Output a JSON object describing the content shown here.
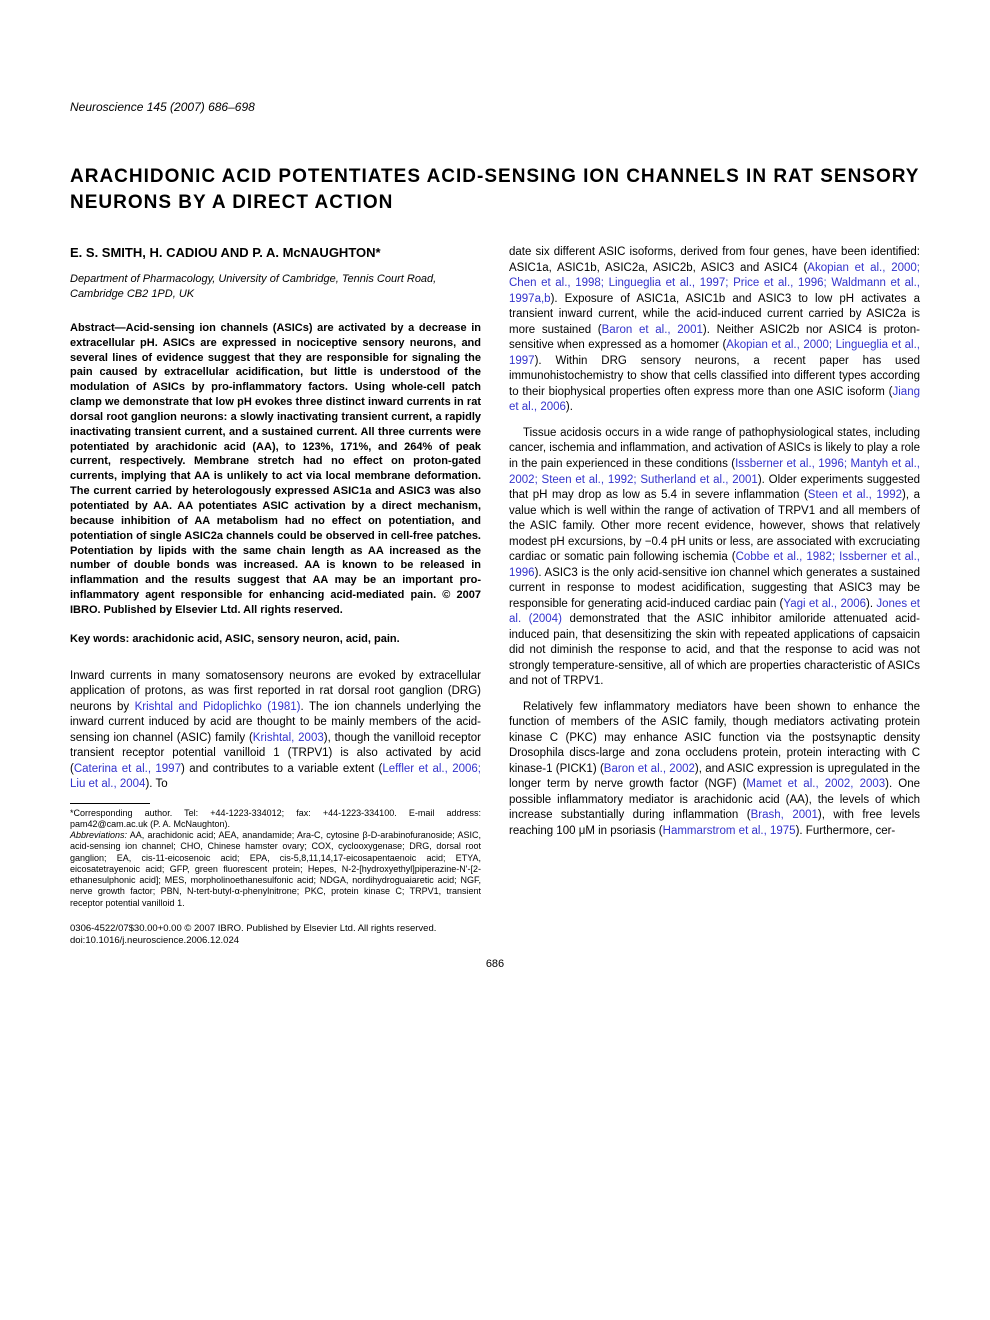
{
  "journal": "Neuroscience 145 (2007) 686–698",
  "title": "ARACHIDONIC ACID POTENTIATES ACID-SENSING ION CHANNELS IN RAT SENSORY NEURONS BY A DIRECT ACTION",
  "authors": "E. S. SMITH, H. CADIOU AND P. A. McNAUGHTON*",
  "affiliation": "Department of Pharmacology, University of Cambridge, Tennis Court Road, Cambridge CB2 1PD, UK",
  "abstract": "Abstract—Acid-sensing ion channels (ASICs) are activated by a decrease in extracellular pH. ASICs are expressed in nociceptive sensory neurons, and several lines of evidence suggest that they are responsible for signaling the pain caused by extracellular acidification, but little is understood of the modulation of ASICs by pro-inflammatory factors. Using whole-cell patch clamp we demonstrate that low pH evokes three distinct inward currents in rat dorsal root ganglion neurons: a slowly inactivating transient current, a rapidly inactivating transient current, and a sustained current. All three currents were potentiated by arachidonic acid (AA), to 123%, 171%, and 264% of peak current, respectively. Membrane stretch had no effect on proton-gated currents, implying that AA is unlikely to act via local membrane deformation. The current carried by heterologously expressed ASIC1a and ASIC3 was also potentiated by AA. AA potentiates ASIC activation by a direct mechanism, because inhibition of AA metabolism had no effect on potentiation, and potentiation of single ASIC2a channels could be observed in cell-free patches. Potentiation by lipids with the same chain length as AA increased as the number of double bonds was increased. AA is known to be released in inflammation and the results suggest that AA may be an important pro-inflammatory agent responsible for enhancing acid-mediated pain. © 2007 IBRO. Published by Elsevier Ltd. All rights reserved.",
  "keywords": "Key words: arachidonic acid, ASIC, sensory neuron, acid, pain.",
  "left_body_1a": "Inward currents in many somatosensory neurons are evoked by extracellular application of protons, as was first reported in rat dorsal root ganglion (DRG) neurons by ",
  "left_ref_1": "Krishtal and Pidoplichko (1981)",
  "left_body_1b": ". The ion channels underlying the inward current induced by acid are thought to be mainly members of the acid-sensing ion channel (ASIC) family (",
  "left_ref_2": "Krishtal, 2003",
  "left_body_1c": "), though the vanilloid receptor transient receptor potential vanilloid 1 (TRPV1) is also activated by acid (",
  "left_ref_3": "Caterina et al., 1997",
  "left_body_1d": ") and contributes to a variable extent (",
  "left_ref_4": "Leffler et al., 2006; Liu et al., 2004",
  "left_body_1e": "). To",
  "footnote_corr": "*Corresponding author. Tel: +44-1223-334012; fax: +44-1223-334100. E-mail address: pam42@cam.ac.uk (P. A. McNaughton).",
  "footnote_abbrev_label": "Abbreviations:",
  "footnote_abbrev": " AA, arachidonic acid; AEA, anandamide; Ara-C, cytosine β-D-arabinofuranoside; ASIC, acid-sensing ion channel; CHO, Chinese hamster ovary; COX, cyclooxygenase; DRG, dorsal root ganglion; EA, cis-11-eicosenoic acid; EPA, cis-5,8,11,14,17-eicosapentaenoic acid; ETYA, eicosatetrayenoic acid; GFP, green fluorescent protein; Hepes, N-2-[hydroxyethyl]piperazine-N'-[2-ethanesulphonic acid]; MES, morpholinoethanesulfonic acid; NDGA, nordihydroguaiaretic acid; NGF, nerve growth factor; PBN, N-tert-butyl-α-phenylnitrone; PKC, protein kinase C; TRPV1, transient receptor potential vanilloid 1.",
  "right_body_1a": "date six different ASIC isoforms, derived from four genes, have been identified: ASIC1a, ASIC1b, ASIC2a, ASIC2b, ASIC3 and ASIC4 (",
  "right_ref_1": "Akopian et al., 2000; Chen et al., 1998; Lingueglia et al., 1997; Price et al., 1996; Waldmann et al., 1997a,b",
  "right_body_1b": "). Exposure of ASIC1a, ASIC1b and ASIC3 to low pH activates a transient inward current, while the acid-induced current carried by ASIC2a is more sustained (",
  "right_ref_2": "Baron et al., 2001",
  "right_body_1c": "). Neither ASIC2b nor ASIC4 is proton-sensitive when expressed as a homomer (",
  "right_ref_3": "Akopian et al., 2000; Lingueglia et al., 1997",
  "right_body_1d": "). Within DRG sensory neurons, a recent paper has used immunohistochemistry to show that cells classified into different types according to their biophysical properties often express more than one ASIC isoform (",
  "right_ref_4": "Jiang et al., 2006",
  "right_body_1e": ").",
  "right_body_2a": "Tissue acidosis occurs in a wide range of pathophysiological states, including cancer, ischemia and inflammation, and activation of ASICs is likely to play a role in the pain experienced in these conditions (",
  "right_ref_5": "Issberner et al., 1996; Mantyh et al., 2002; Steen et al., 1992; Sutherland et al., 2001",
  "right_body_2b": "). Older experiments suggested that pH may drop as low as 5.4 in severe inflammation (",
  "right_ref_6": "Steen et al., 1992",
  "right_body_2c": "), a value which is well within the range of activation of TRPV1 and all members of the ASIC family. Other more recent evidence, however, shows that relatively modest pH excursions, by −0.4 pH units or less, are associated with excruciating cardiac or somatic pain following ischemia (",
  "right_ref_7": "Cobbe et al., 1982; Issberner et al., 1996",
  "right_body_2d": "). ASIC3 is the only acid-sensitive ion channel which generates a sustained current in response to modest acidification, suggesting that ASIC3 may be responsible for generating acid-induced cardiac pain (",
  "right_ref_8": "Yagi et al., 2006",
  "right_body_2e": "). ",
  "right_ref_9": "Jones et al. (2004)",
  "right_body_2f": " demonstrated that the ASIC inhibitor amiloride attenuated acid-induced pain, that desensitizing the skin with repeated applications of capsaicin did not diminish the response to acid, and that the response to acid was not strongly temperature-sensitive, all of which are properties characteristic of ASICs and not of TRPV1.",
  "right_body_3a": "Relatively few inflammatory mediators have been shown to enhance the function of members of the ASIC family, though mediators activating protein kinase C (PKC) may enhance ASIC function via the postsynaptic density Drosophila discs-large and zona occludens protein, protein interacting with C kinase-1 (PICK1) (",
  "right_ref_10": "Baron et al., 2002",
  "right_body_3b": "), and ASIC expression is upregulated in the longer term by nerve growth factor (NGF) (",
  "right_ref_11": "Mamet et al., 2002, 2003",
  "right_body_3c": "). One possible inflammatory mediator is arachidonic acid (AA), the levels of which increase substantially during inflammation (",
  "right_ref_12": "Brash, 2001",
  "right_body_3d": "), with free levels reaching 100 μM in psoriasis (",
  "right_ref_13": "Hammarstrom et al., 1975",
  "right_body_3e": "). Furthermore, cer-",
  "footer_line1": "0306-4522/07$30.00+0.00 © 2007 IBRO. Published by Elsevier Ltd. All rights reserved.",
  "footer_line2": "doi:10.1016/j.neuroscience.2006.12.024",
  "page_number": "686"
}
